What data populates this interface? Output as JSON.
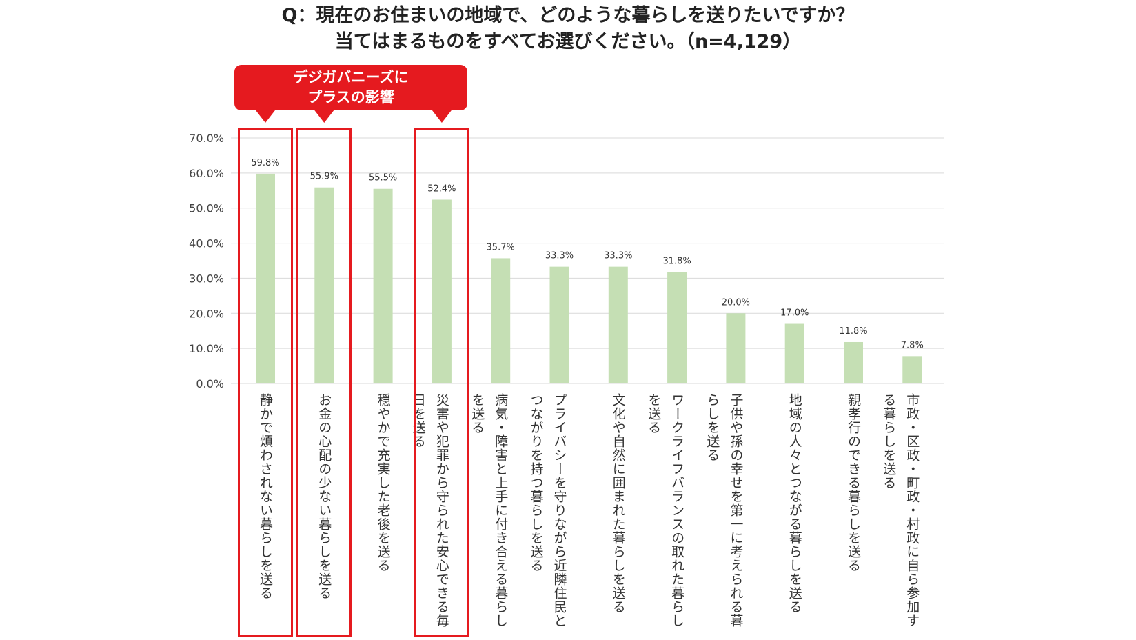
{
  "title": {
    "line1": "Q：現在のお住まいの地域で、どのような暮らしを送りたいですか？",
    "line2": "当てはまるものをすべてお選びください。（n=4,129）"
  },
  "callout": {
    "line1": "デジガバニーズに",
    "line2": "プラスの影響"
  },
  "colors": {
    "bar": "#c5dfb4",
    "highlight": "#e51a1f",
    "grid": "#d9d9d9"
  },
  "chart_data": {
    "type": "bar",
    "ylim": [
      0,
      70
    ],
    "yticks": [
      "0.0%",
      "10.0%",
      "20.0%",
      "30.0%",
      "40.0%",
      "50.0%",
      "60.0%",
      "70.0%"
    ],
    "grid": true,
    "categories": [
      "静かで煩わされない暮らしを送る",
      "お金の心配の少ない暮らしを送る",
      "穏やかで充実した老後を送る",
      "災害や犯罪から守られた安心できる毎日を送る",
      "病気・障害と上手に付き合える暮らしを送る",
      "プライバシーを守りながら近隣住民とつながりを持つ暮らしを送る",
      "文化や自然に囲まれた暮らしを送る",
      "ワークライフバランスの取れた暮らしを送る",
      "子供や孫の幸せを第一に考えられる暮らしを送る",
      "地域の人々とつながる暮らしを送る",
      "親孝行のできる暮らしを送る",
      "市政・区政・町政・村政に自ら参加する暮らしを送る"
    ],
    "label_columns": [
      [
        "静かで煩わされない暮らしを送る"
      ],
      [
        "お金の心配の少ない暮らしを送る"
      ],
      [
        "穏やかで充実した老後を送る"
      ],
      [
        "災害や犯罪から守られた安心できる毎",
        "日を送る"
      ],
      [
        "病気・障害と上手に付き合える暮らし",
        "を送る"
      ],
      [
        "プライバシーを守りながら近隣住民と",
        "つながりを持つ暮らしを送る"
      ],
      [
        "文化や自然に囲まれた暮らしを送る"
      ],
      [
        "ワークライフバランスの取れた暮らし",
        "を送る"
      ],
      [
        "子供や孫の幸せを第一に考えられる暮",
        "らしを送る"
      ],
      [
        "地域の人々とつながる暮らしを送る"
      ],
      [
        "親孝行のできる暮らしを送る"
      ],
      [
        "市政・区政・町政・村政に自ら参加す",
        "る暮らしを送る"
      ]
    ],
    "values": [
      59.8,
      55.9,
      55.5,
      52.4,
      35.7,
      33.3,
      33.3,
      31.8,
      20.0,
      17.0,
      11.8,
      7.8
    ],
    "value_labels": [
      "59.8%",
      "55.9%",
      "55.5%",
      "52.4%",
      "35.7%",
      "33.3%",
      "33.3%",
      "31.8%",
      "20.0%",
      "17.0%",
      "11.8%",
      "7.8%"
    ],
    "highlighted_indices": [
      0,
      1,
      3
    ]
  }
}
